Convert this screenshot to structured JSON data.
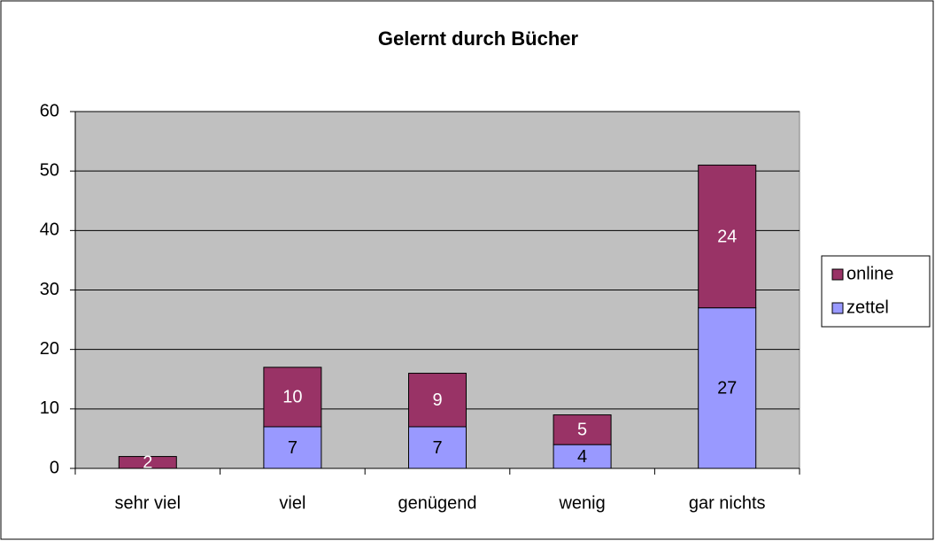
{
  "chart_data": {
    "type": "stacked_bar",
    "title": "Gelernt durch Bücher",
    "categories": [
      "sehr viel",
      "viel",
      "genügend",
      "wenig",
      "gar nichts"
    ],
    "series": [
      {
        "name": "zettel",
        "color": "#9999ff",
        "values": [
          0,
          7,
          7,
          4,
          27
        ]
      },
      {
        "name": "online",
        "color": "#993366",
        "values": [
          2,
          10,
          9,
          5,
          24
        ]
      }
    ],
    "ylim": [
      0,
      60
    ],
    "yticks": [
      0,
      10,
      20,
      30,
      40,
      50,
      60
    ],
    "grid": true,
    "legend": "right"
  }
}
